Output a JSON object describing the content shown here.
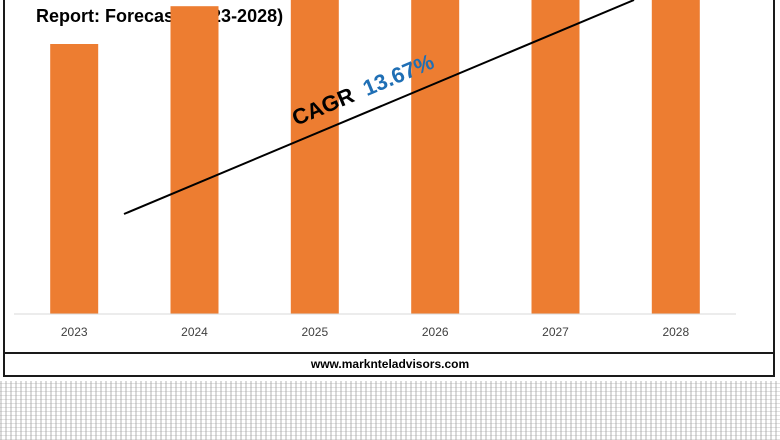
{
  "title": "Report: Forecast (2023-2028)",
  "footer": {
    "url": "www.marknteladvisors.com"
  },
  "annotation": {
    "cagr_label": "CAGR",
    "cagr_value": "13.67%",
    "label_color": "#000000",
    "value_color": "#1f6fb5"
  },
  "colors": {
    "bar": "#ed7d31",
    "axis": "#d9d9d9",
    "tick_label": "#404040"
  },
  "chart_data": {
    "type": "bar",
    "title": "Report: Forecast (2023-2028)",
    "categories": [
      "2023",
      "2024",
      "2025",
      "2026",
      "2027",
      "2028"
    ],
    "series": [
      {
        "values": [
          1.0,
          1.14,
          1.29,
          1.47,
          1.67,
          1.9
        ]
      }
    ],
    "xlabel": "",
    "ylabel": "",
    "y_axis_visible": false,
    "grid": false,
    "legend": "none",
    "annotations": [
      "CAGR 13.67%"
    ]
  }
}
